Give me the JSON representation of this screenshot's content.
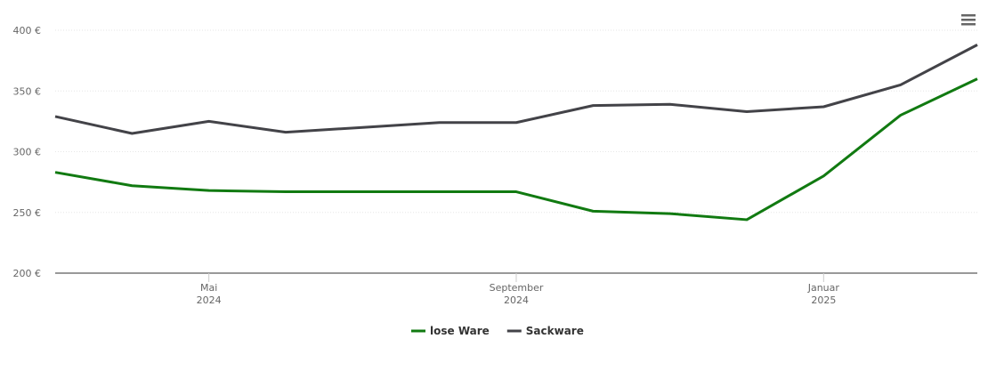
{
  "chart_data": {
    "type": "line",
    "x": [
      "2024-03",
      "2024-04",
      "2024-05",
      "2024-06",
      "2024-07",
      "2024-08",
      "2024-09",
      "2024-10",
      "2024-11",
      "2024-12",
      "2025-01",
      "2025-02",
      "2025-03"
    ],
    "xlim": [
      "2024-03",
      "2025-03"
    ],
    "xticks": [
      {
        "value": "2024-05",
        "label": "Mai",
        "year": "2024"
      },
      {
        "value": "2024-09",
        "label": "September",
        "year": "2024"
      },
      {
        "value": "2025-01",
        "label": "Januar",
        "year": "2025"
      }
    ],
    "ylim": [
      200,
      400
    ],
    "yticks": [
      {
        "value": 200,
        "label": "200 €"
      },
      {
        "value": 250,
        "label": "250 €"
      },
      {
        "value": 300,
        "label": "300 €"
      },
      {
        "value": 350,
        "label": "350 €"
      },
      {
        "value": 400,
        "label": "400 €"
      }
    ],
    "grid": true,
    "legend": "bottom",
    "series": [
      {
        "name": "lose Ware",
        "color": "#117a11",
        "values": [
          283,
          272,
          268,
          267,
          267,
          267,
          267,
          251,
          249,
          244,
          280,
          330,
          360
        ]
      },
      {
        "name": "Sackware",
        "color": "#434348",
        "values": [
          329,
          315,
          325,
          316,
          320,
          324,
          324,
          338,
          339,
          333,
          337,
          355,
          388
        ]
      }
    ]
  }
}
